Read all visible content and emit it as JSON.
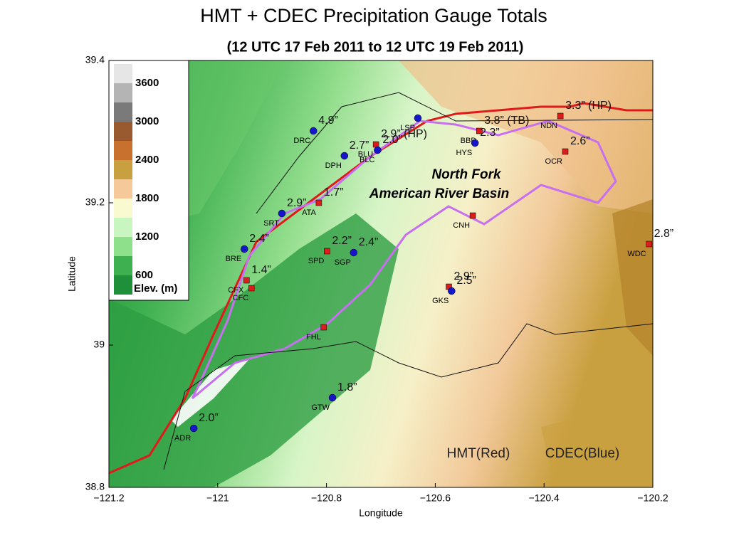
{
  "title": "HMT + CDEC Precipitation Gauge Totals",
  "subtitle": "(12 UTC 17 Feb 2011 to 12 UTC 19 Feb 2011)",
  "x_label": "Longitude",
  "y_label": "Latitude",
  "xlim": [
    -121.2,
    -120.2
  ],
  "ylim": [
    38.8,
    39.4
  ],
  "xticks": [
    {
      "value": -121.2,
      "label": "−121.2"
    },
    {
      "value": -121,
      "label": "−121"
    },
    {
      "value": -120.8,
      "label": "−120.8"
    },
    {
      "value": -120.6,
      "label": "−120.6"
    },
    {
      "value": -120.4,
      "label": "−120.4"
    },
    {
      "value": -120.2,
      "label": "−120.2"
    }
  ],
  "yticks": [
    38.8,
    39,
    39.2,
    39.4
  ],
  "basin_label": [
    "North Fork",
    "American River Basin"
  ],
  "legend": {
    "hmt": "HMT(Red)",
    "cdec": "CDEC(Blue)"
  },
  "network_colors": {
    "hmt": "#dd1c1c",
    "cdec": "#1515cc"
  },
  "colorbar": {
    "labels": [
      "3600",
      "3000",
      "2400",
      "1800",
      "1200",
      "600"
    ],
    "title": "Elev. (m)"
  },
  "stations": [
    {
      "id": "DRC",
      "network": "cdec",
      "lon": -120.824,
      "lat": 39.301,
      "total": "4.9”"
    },
    {
      "id": "DPH",
      "network": "cdec",
      "lon": -120.767,
      "lat": 39.266,
      "total": "2.7”"
    },
    {
      "id": "LSP",
      "network": "cdec",
      "lon": -120.632,
      "lat": 39.319
    },
    {
      "id": "BLU",
      "network": "hmt",
      "lon": -120.709,
      "lat": 39.282,
      "total": "2.9” (HP)"
    },
    {
      "id": "BLC",
      "network": "cdec",
      "lon": -120.706,
      "lat": 39.274,
      "total": "2.0”"
    },
    {
      "id": "BBD",
      "network": "hmt",
      "lon": -120.519,
      "lat": 39.301,
      "total": "3.8” (TB)"
    },
    {
      "id": "HYS",
      "network": "cdec",
      "lon": -120.527,
      "lat": 39.284,
      "total": "2.3”"
    },
    {
      "id": "NDN",
      "network": "hmt",
      "lon": -120.37,
      "lat": 39.322,
      "total": "3.3” (HP)"
    },
    {
      "id": "OCR",
      "network": "hmt",
      "lon": -120.361,
      "lat": 39.272,
      "total": "2.6”"
    },
    {
      "id": "ATA",
      "network": "hmt",
      "lon": -120.814,
      "lat": 39.2,
      "total": "1.7”"
    },
    {
      "id": "SRT",
      "network": "cdec",
      "lon": -120.882,
      "lat": 39.185,
      "total": "2.9”"
    },
    {
      "id": "CNH",
      "network": "hmt",
      "lon": -120.531,
      "lat": 39.182
    },
    {
      "id": "WDC",
      "network": "hmt",
      "lon": -120.207,
      "lat": 39.142,
      "total": "2.8”"
    },
    {
      "id": "SPD",
      "network": "hmt",
      "lon": -120.799,
      "lat": 39.132,
      "total": "2.2”"
    },
    {
      "id": "SGP",
      "network": "cdec",
      "lon": -120.75,
      "lat": 39.13,
      "total": "2.4”"
    },
    {
      "id": "BRE",
      "network": "cdec",
      "lon": -120.951,
      "lat": 39.135,
      "total": "2.4”"
    },
    {
      "id": "CFX",
      "network": "hmt",
      "lon": -120.947,
      "lat": 39.091,
      "total": "1.4”"
    },
    {
      "id": "CFC",
      "network": "hmt",
      "lon": -120.938,
      "lat": 39.08
    },
    {
      "network": "hmt",
      "lon": -120.575,
      "lat": 39.082,
      "total": "2.9”"
    },
    {
      "id": "GKS",
      "network": "cdec",
      "lon": -120.57,
      "lat": 39.076,
      "total": "2.5”"
    },
    {
      "id": "FHL",
      "network": "hmt",
      "lon": -120.805,
      "lat": 39.025
    },
    {
      "id": "GTW",
      "network": "cdec",
      "lon": -120.789,
      "lat": 38.926,
      "total": "1.8”"
    },
    {
      "id": "ADR",
      "network": "cdec",
      "lon": -121.044,
      "lat": 38.883,
      "total": "2.0”"
    }
  ]
}
